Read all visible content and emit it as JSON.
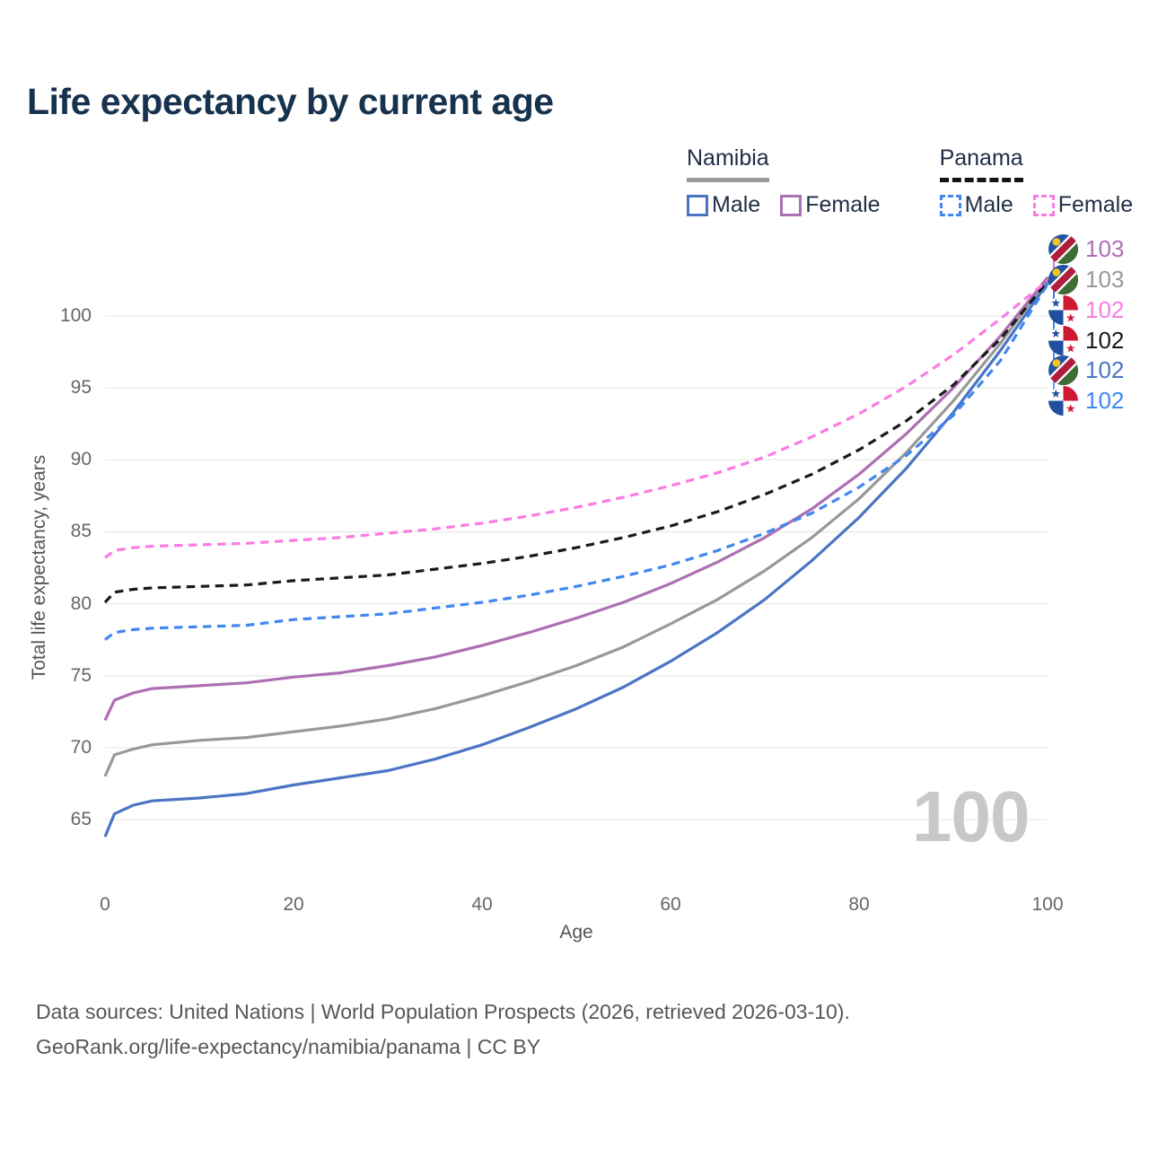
{
  "header": {
    "title": "Life expectancy by current age"
  },
  "legend": {
    "groups": [
      {
        "country": "Namibia",
        "items": [
          {
            "label": "Male"
          },
          {
            "label": "Female"
          }
        ]
      },
      {
        "country": "Panama",
        "items": [
          {
            "label": "Male"
          },
          {
            "label": "Female"
          }
        ]
      }
    ]
  },
  "colors": {
    "namibia_male": "#4a75c4",
    "namibia_all": "#989898",
    "namibia_female": "#ad6fb3",
    "panama_male": "#4187f0",
    "panama_all": "#1a1a1a",
    "panama_female": "#fb7be4",
    "grid": "#e9e9e9",
    "axis_text": "#666666",
    "title_text": "#17324d",
    "watermark_text": "#c8c8c8",
    "flag_namibia": {
      "blue": "#2553a3",
      "red": "#b01e3c",
      "green": "#3f6b35",
      "sun": "#f5c518",
      "white": "#ffffff"
    },
    "flag_panama": {
      "blue": "#1f4f9e",
      "red": "#cf1832",
      "white": "#ffffff"
    }
  },
  "chart_data": {
    "type": "line",
    "title": "Life expectancy by current age",
    "xlabel": "Age",
    "ylabel": "Total life expectancy, years",
    "xlim": [
      0,
      100
    ],
    "ylim": [
      63,
      103.5
    ],
    "x_ticks": [
      0,
      20,
      40,
      60,
      80,
      100
    ],
    "y_ticks": [
      65,
      70,
      75,
      80,
      85,
      90,
      95,
      100
    ],
    "grid": "horizontal",
    "legend_position": "top-right",
    "ages": [
      0,
      1,
      3,
      5,
      10,
      15,
      20,
      25,
      30,
      35,
      40,
      45,
      50,
      55,
      60,
      65,
      70,
      75,
      80,
      85,
      90,
      95,
      100
    ],
    "series": [
      {
        "name": "Namibia",
        "sex": "male",
        "style": "solid",
        "color_key": "namibia_male",
        "values": [
          63.8,
          65.4,
          66.0,
          66.3,
          66.5,
          66.8,
          67.4,
          67.9,
          68.4,
          69.2,
          70.2,
          71.4,
          72.7,
          74.2,
          76.0,
          78.0,
          80.3,
          83.0,
          86.0,
          89.4,
          93.3,
          97.6,
          102.3
        ],
        "end_label": "102"
      },
      {
        "name": "Namibia",
        "sex": "all",
        "style": "solid",
        "color_key": "namibia_all",
        "values": [
          68.0,
          69.5,
          69.9,
          70.2,
          70.5,
          70.7,
          71.1,
          71.5,
          72.0,
          72.7,
          73.6,
          74.6,
          75.7,
          77.0,
          78.6,
          80.3,
          82.3,
          84.6,
          87.3,
          90.5,
          94.1,
          98.1,
          102.6
        ],
        "end_label": "103"
      },
      {
        "name": "Namibia",
        "sex": "female",
        "style": "solid",
        "color_key": "namibia_female",
        "values": [
          71.9,
          73.3,
          73.8,
          74.1,
          74.3,
          74.5,
          74.9,
          75.2,
          75.7,
          76.3,
          77.1,
          78.0,
          79.0,
          80.1,
          81.4,
          82.9,
          84.6,
          86.6,
          89.0,
          91.8,
          95.0,
          98.6,
          102.68
        ],
        "end_label": "103"
      },
      {
        "name": "Panama",
        "sex": "male",
        "style": "dashed",
        "color_key": "panama_male",
        "values": [
          77.5,
          78.0,
          78.2,
          78.3,
          78.4,
          78.5,
          78.9,
          79.1,
          79.3,
          79.7,
          80.1,
          80.6,
          81.2,
          81.9,
          82.7,
          83.7,
          84.9,
          86.3,
          88.1,
          90.3,
          93.1,
          96.9,
          102.2
        ],
        "end_label": "102"
      },
      {
        "name": "Panama",
        "sex": "all",
        "style": "dashed",
        "color_key": "panama_all",
        "values": [
          80.1,
          80.8,
          81.0,
          81.1,
          81.2,
          81.3,
          81.6,
          81.8,
          82.0,
          82.4,
          82.8,
          83.3,
          83.9,
          84.6,
          85.4,
          86.4,
          87.6,
          89.0,
          90.7,
          92.7,
          95.2,
          98.4,
          102.4
        ],
        "end_label": "102"
      },
      {
        "name": "Panama",
        "sex": "female",
        "style": "dashed",
        "color_key": "panama_female",
        "values": [
          83.2,
          83.7,
          83.9,
          84.0,
          84.1,
          84.2,
          84.4,
          84.6,
          84.9,
          85.2,
          85.6,
          86.1,
          86.7,
          87.4,
          88.2,
          89.1,
          90.2,
          91.6,
          93.2,
          95.1,
          97.3,
          99.8,
          102.45
        ],
        "end_label": "102"
      }
    ]
  },
  "end_rows": [
    {
      "flag": "namibia",
      "value": "103",
      "color_key": "namibia_female",
      "series": 2
    },
    {
      "flag": "namibia",
      "value": "103",
      "color_key": "namibia_all",
      "series": 1
    },
    {
      "flag": "panama",
      "value": "102",
      "color_key": "panama_female",
      "series": 5
    },
    {
      "flag": "panama",
      "value": "102",
      "color_key": "panama_all",
      "series": 4
    },
    {
      "flag": "namibia",
      "value": "102",
      "color_key": "namibia_male",
      "series": 0
    },
    {
      "flag": "panama",
      "value": "102",
      "color_key": "panama_male",
      "series": 3
    }
  ],
  "watermark": "100",
  "footer": {
    "line1": "Data sources: United Nations | World Population Prospects (2026, retrieved 2026-03-10).",
    "line2": "GeoRank.org/life-expectancy/namibia/panama | CC BY"
  }
}
